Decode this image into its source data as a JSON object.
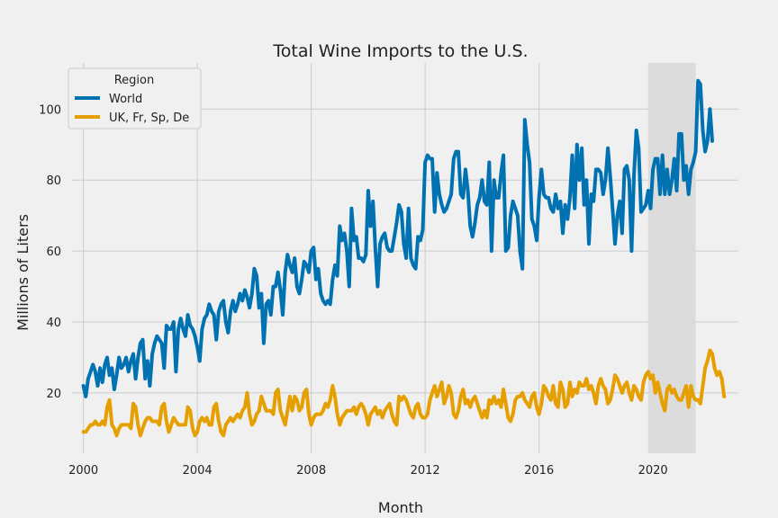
{
  "colors": {
    "background": "#f0f0f0",
    "world": "#0072b2",
    "ukfrspde": "#e69f00",
    "grid": "#cbcbcb",
    "shade": "#d9d9d9"
  },
  "chart_data": {
    "type": "line",
    "title": "Total Wine Imports to the U.S.",
    "xlabel": "Month",
    "ylabel": "Millions of Liters",
    "xlim": [
      1999.6,
      2023.0
    ],
    "ylim": [
      3,
      113
    ],
    "xticks": [
      2000,
      2004,
      2008,
      2012,
      2016,
      2020
    ],
    "yticks": [
      20,
      40,
      60,
      80,
      100
    ],
    "grid": true,
    "legend": {
      "title": "Region",
      "placement": "top-left"
    },
    "shaded_span": [
      2019.83,
      2021.5
    ],
    "series": [
      {
        "name": "World",
        "color": "#0072b2",
        "start": 2000.0,
        "step": 0.0833333,
        "values": [
          22,
          19,
          24,
          26,
          28,
          26,
          22,
          27,
          23,
          28,
          30,
          25,
          27,
          21,
          25,
          30,
          27,
          28,
          30,
          26,
          29,
          31,
          24,
          30,
          34,
          35,
          24,
          29,
          22,
          31,
          34,
          36,
          35,
          34,
          27,
          39,
          38,
          38,
          40,
          26,
          38,
          41,
          38,
          36,
          42,
          39,
          38,
          36,
          33,
          29,
          38,
          41,
          42,
          45,
          43,
          42,
          35,
          43,
          45,
          46,
          40,
          37,
          43,
          46,
          43,
          45,
          48,
          46,
          49,
          47,
          44,
          48,
          55,
          53,
          44,
          48,
          34,
          45,
          46,
          42,
          50,
          50,
          54,
          49,
          42,
          54,
          59,
          56,
          54,
          58,
          50,
          48,
          52,
          57,
          56,
          54,
          60,
          61,
          52,
          55,
          48,
          46,
          45,
          46,
          45,
          52,
          56,
          53,
          67,
          63,
          65,
          60,
          50,
          72,
          63,
          64,
          58,
          58,
          57,
          59,
          77,
          67,
          74,
          61,
          50,
          62,
          64,
          65,
          61,
          60,
          60,
          64,
          68,
          73,
          71,
          62,
          58,
          72,
          58,
          56,
          55,
          64,
          63,
          66,
          85,
          87,
          86,
          86,
          71,
          82,
          76,
          73,
          71,
          72,
          74,
          76,
          86,
          88,
          88,
          76,
          75,
          83,
          77,
          67,
          64,
          68,
          73,
          75,
          80,
          74,
          73,
          85,
          60,
          80,
          75,
          75,
          82,
          87,
          60,
          61,
          70,
          74,
          72,
          70,
          60,
          55,
          97,
          90,
          85,
          69,
          67,
          63,
          75,
          83,
          76,
          75,
          75,
          72,
          71,
          76,
          72,
          74,
          65,
          73,
          69,
          75,
          87,
          72,
          90,
          80,
          89,
          73,
          80,
          62,
          76,
          74,
          83,
          83,
          82,
          76,
          80,
          89,
          81,
          72,
          62,
          70,
          74,
          65,
          83,
          84,
          80,
          60,
          81,
          94,
          89,
          71,
          72,
          73,
          77,
          72,
          83,
          86,
          86,
          76,
          87,
          76,
          83,
          76,
          80,
          86,
          77,
          93,
          93,
          80,
          84,
          76,
          83,
          85,
          88,
          108,
          107,
          94,
          88,
          91,
          100,
          91
        ]
      },
      {
        "name": "UK, Fr, Sp, De",
        "color": "#e69f00",
        "start": 2000.0,
        "step": 0.0833333,
        "values": [
          9,
          9,
          10,
          11,
          11,
          12,
          11,
          11,
          12,
          11,
          16,
          18,
          11,
          10,
          8,
          10,
          11,
          11,
          11,
          11,
          10,
          17,
          16,
          11,
          8,
          10,
          12,
          13,
          13,
          12,
          12,
          12,
          11,
          16,
          17,
          12,
          9,
          11,
          13,
          12,
          11,
          11,
          11,
          11,
          16,
          15,
          10,
          8,
          9,
          12,
          13,
          12,
          13,
          11,
          11,
          16,
          17,
          12,
          9,
          8,
          11,
          12,
          13,
          12,
          13,
          14,
          13,
          15,
          16,
          20,
          14,
          11,
          12,
          14,
          15,
          19,
          17,
          15,
          15,
          15,
          14,
          20,
          21,
          15,
          13,
          11,
          15,
          19,
          15,
          19,
          18,
          15,
          16,
          20,
          21,
          14,
          11,
          13,
          14,
          14,
          14,
          15,
          17,
          16,
          18,
          22,
          19,
          14,
          11,
          13,
          14,
          15,
          15,
          15,
          16,
          14,
          16,
          17,
          16,
          14,
          11,
          14,
          15,
          16,
          14,
          15,
          13,
          15,
          16,
          17,
          14,
          12,
          11,
          19,
          18,
          19,
          18,
          16,
          14,
          13,
          16,
          17,
          14,
          13,
          13,
          14,
          18,
          20,
          22,
          19,
          21,
          23,
          17,
          19,
          22,
          20,
          14,
          13,
          15,
          19,
          21,
          17,
          18,
          16,
          18,
          19,
          17,
          15,
          13,
          15,
          13,
          18,
          17,
          19,
          17,
          18,
          16,
          21,
          17,
          13,
          12,
          14,
          18,
          19,
          19,
          20,
          18,
          17,
          16,
          19,
          20,
          16,
          14,
          17,
          22,
          21,
          19,
          18,
          22,
          17,
          16,
          23,
          21,
          16,
          17,
          23,
          19,
          21,
          20,
          23,
          22,
          22,
          24,
          21,
          22,
          20,
          17,
          22,
          24,
          22,
          21,
          17,
          18,
          21,
          25,
          24,
          22,
          20,
          22,
          23,
          20,
          18,
          22,
          21,
          19,
          18,
          23,
          25,
          26,
          24,
          25,
          20,
          23,
          20,
          17,
          15,
          21,
          22,
          20,
          21,
          19,
          18,
          18,
          20,
          22,
          16,
          22,
          19,
          18,
          18,
          17,
          22,
          27,
          29,
          32,
          31,
          27,
          25,
          26,
          24,
          19
        ]
      }
    ]
  }
}
